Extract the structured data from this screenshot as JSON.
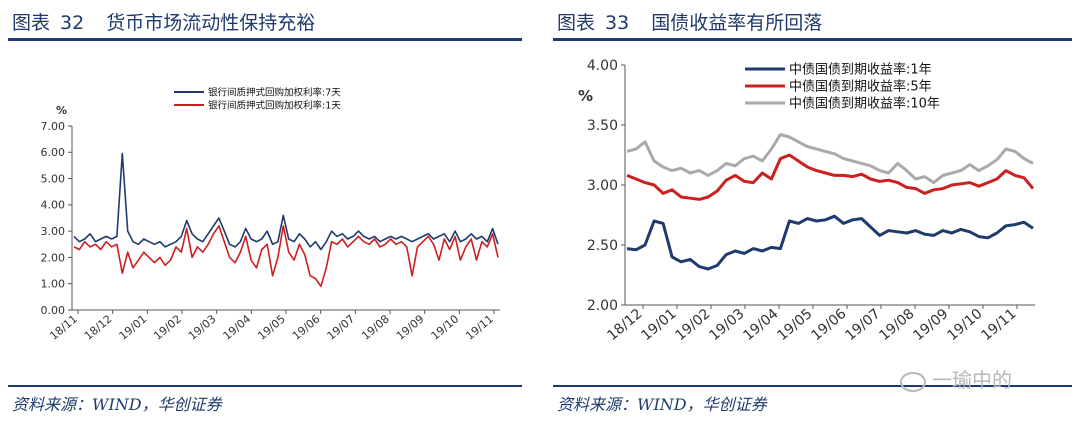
{
  "left_panel": {
    "figure_label": "图表",
    "figure_number": "32",
    "title": "货币市场流动性保持充裕",
    "source": "资料来源：WIND，华创证券"
  },
  "right_panel": {
    "figure_label": "图表",
    "figure_number": "33",
    "title": "国债收益率有所回落",
    "source": "资料来源：WIND，华创证券"
  },
  "watermark": {
    "text": "一瑜中的"
  },
  "colors": {
    "navy": "#1f3a6e",
    "red": "#cc1f1f",
    "gray": "#aaaaaa",
    "axis": "#333333"
  },
  "chart_data": [
    {
      "type": "line",
      "title": "",
      "ylabel": "%",
      "ylim": [
        0,
        7
      ],
      "yticks": [
        "0.00",
        "1.00",
        "2.00",
        "3.00",
        "4.00",
        "5.00",
        "6.00",
        "7.00"
      ],
      "x_tick_labels": [
        "18/11",
        "18/12",
        "19/01",
        "19/02",
        "19/03",
        "19/04",
        "19/05",
        "19/06",
        "19/07",
        "19/08",
        "19/09",
        "19/10",
        "19/11"
      ],
      "legend_position": "top",
      "series": [
        {
          "name": "银行间质押式回购加权利率:7天",
          "color": "#1f3a6e",
          "values": [
            2.8,
            2.6,
            2.7,
            2.9,
            2.6,
            2.7,
            2.8,
            2.7,
            2.8,
            5.95,
            3.0,
            2.6,
            2.5,
            2.7,
            2.6,
            2.5,
            2.6,
            2.4,
            2.5,
            2.6,
            2.8,
            3.4,
            2.9,
            2.7,
            2.6,
            2.9,
            3.2,
            3.5,
            3.0,
            2.5,
            2.4,
            2.6,
            3.1,
            2.7,
            2.6,
            2.7,
            3.0,
            2.5,
            2.6,
            3.6,
            2.7,
            2.6,
            2.9,
            2.7,
            2.4,
            2.6,
            2.3,
            2.6,
            3.0,
            2.8,
            2.9,
            2.7,
            2.8,
            3.0,
            2.8,
            2.7,
            2.8,
            2.6,
            2.7,
            2.8,
            2.7,
            2.8,
            2.7,
            2.6,
            2.7,
            2.8,
            2.9,
            2.7,
            2.8,
            2.9,
            2.6,
            3.0,
            2.6,
            2.7,
            2.9,
            2.7,
            2.8,
            2.6,
            3.1,
            2.5
          ]
        },
        {
          "name": "银行间质押式回购加权利率:1天",
          "color": "#cc1f1f",
          "values": [
            2.4,
            2.3,
            2.6,
            2.4,
            2.5,
            2.3,
            2.6,
            2.4,
            2.5,
            1.4,
            2.2,
            1.6,
            1.9,
            2.2,
            2.0,
            1.8,
            2.0,
            1.7,
            1.9,
            2.4,
            2.2,
            3.1,
            2.0,
            2.4,
            2.2,
            2.5,
            2.9,
            3.2,
            2.6,
            2.0,
            1.8,
            2.2,
            2.8,
            1.9,
            1.6,
            2.3,
            2.5,
            1.3,
            2.0,
            3.2,
            2.2,
            1.9,
            2.5,
            2.1,
            1.3,
            1.2,
            0.9,
            1.6,
            2.6,
            2.5,
            2.7,
            2.4,
            2.6,
            2.8,
            2.6,
            2.5,
            2.7,
            2.4,
            2.5,
            2.7,
            2.5,
            2.6,
            2.4,
            1.3,
            2.4,
            2.6,
            2.8,
            2.5,
            1.9,
            2.7,
            2.3,
            2.8,
            1.9,
            2.4,
            2.7,
            1.9,
            2.6,
            2.4,
            2.9,
            2.0
          ]
        }
      ]
    },
    {
      "type": "line",
      "title": "",
      "ylabel": "%",
      "ylim": [
        2.0,
        4.0
      ],
      "yticks": [
        "2.00",
        "2.50",
        "3.00",
        "3.50",
        "4.00"
      ],
      "x_tick_labels": [
        "18/12",
        "19/01",
        "19/02",
        "19/03",
        "19/04",
        "19/05",
        "19/06",
        "19/07",
        "19/08",
        "19/09",
        "19/10",
        "19/11"
      ],
      "legend_position": "top",
      "series": [
        {
          "name": "中债国债到期收益率:1年",
          "color": "#1f3a6e",
          "values": [
            2.47,
            2.46,
            2.5,
            2.7,
            2.68,
            2.4,
            2.36,
            2.38,
            2.32,
            2.3,
            2.33,
            2.42,
            2.45,
            2.43,
            2.47,
            2.45,
            2.48,
            2.47,
            2.7,
            2.68,
            2.72,
            2.7,
            2.71,
            2.74,
            2.68,
            2.71,
            2.72,
            2.65,
            2.58,
            2.62,
            2.61,
            2.6,
            2.62,
            2.59,
            2.58,
            2.62,
            2.6,
            2.63,
            2.61,
            2.57,
            2.56,
            2.6,
            2.66,
            2.67,
            2.69,
            2.64
          ]
        },
        {
          "name": "中债国债到期收益率:5年",
          "color": "#cc1f1f",
          "values": [
            3.08,
            3.05,
            3.02,
            3.0,
            2.93,
            2.96,
            2.9,
            2.89,
            2.88,
            2.9,
            2.95,
            3.04,
            3.08,
            3.03,
            3.02,
            3.1,
            3.05,
            3.22,
            3.25,
            3.2,
            3.15,
            3.12,
            3.1,
            3.08,
            3.08,
            3.07,
            3.09,
            3.05,
            3.03,
            3.04,
            3.02,
            2.98,
            2.97,
            2.93,
            2.96,
            2.97,
            3.0,
            3.01,
            3.02,
            2.99,
            3.02,
            3.05,
            3.12,
            3.08,
            3.06,
            2.97
          ]
        },
        {
          "name": "中债国债到期收益率:10年",
          "color": "#aaaaaa",
          "values": [
            3.28,
            3.3,
            3.36,
            3.2,
            3.15,
            3.12,
            3.14,
            3.1,
            3.12,
            3.08,
            3.12,
            3.18,
            3.16,
            3.22,
            3.24,
            3.2,
            3.3,
            3.42,
            3.4,
            3.36,
            3.32,
            3.3,
            3.28,
            3.26,
            3.22,
            3.2,
            3.18,
            3.16,
            3.12,
            3.1,
            3.18,
            3.12,
            3.05,
            3.07,
            3.02,
            3.08,
            3.1,
            3.12,
            3.17,
            3.12,
            3.16,
            3.21,
            3.3,
            3.28,
            3.22,
            3.18
          ]
        }
      ]
    }
  ]
}
